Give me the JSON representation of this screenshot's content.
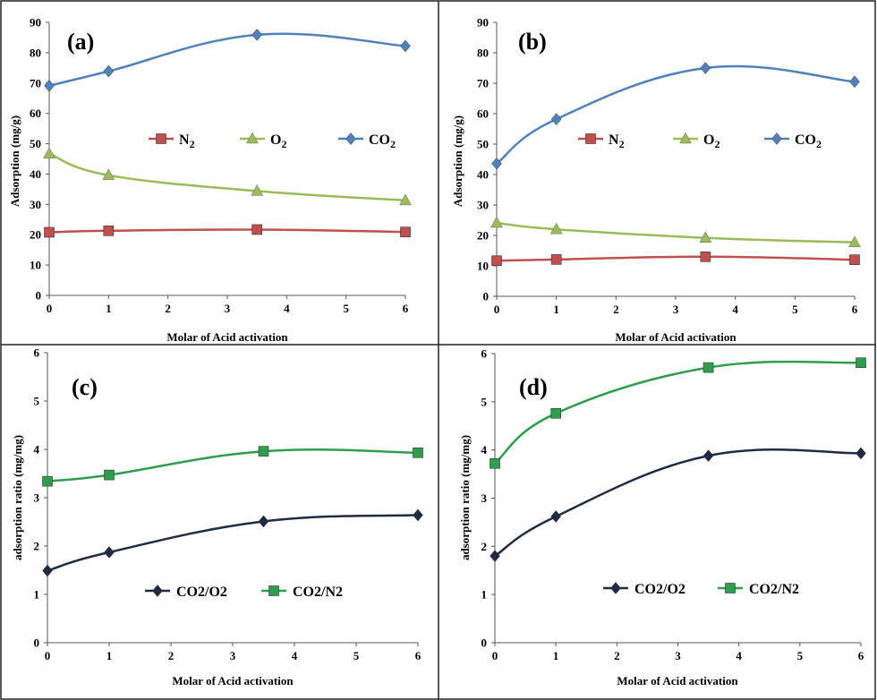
{
  "colors": {
    "n2": "#C0504D",
    "o2": "#9BBB59",
    "co2": "#4F81BD",
    "co2_o2": "#1F2A44",
    "co2_n2": "#2E9E4E"
  },
  "chart_data": [
    {
      "type": "line",
      "panel_label": "(a)",
      "x": [
        0,
        1,
        3.5,
        6
      ],
      "xlim": [
        0,
        6
      ],
      "ylim": [
        0,
        90
      ],
      "x_ticks": [
        "0",
        "1",
        "2",
        "3",
        "4",
        "5",
        "6"
      ],
      "y_ticks": [
        "0",
        "10",
        "20",
        "30",
        "40",
        "50",
        "60",
        "70",
        "80",
        "90"
      ],
      "xlabel": "Molar of Acid activation",
      "ylabel": "Adsorption (mg/g)",
      "legend_position": "middle",
      "series": [
        {
          "name": "N2",
          "label_main": "N",
          "label_sub": "2",
          "color_key": "n2",
          "marker": "square",
          "values": [
            20.8,
            21.3,
            21.7,
            20.9
          ]
        },
        {
          "name": "O2",
          "label_main": "O",
          "label_sub": "2",
          "color_key": "o2",
          "marker": "triangle",
          "values": [
            46.7,
            39.6,
            34.4,
            31.3
          ]
        },
        {
          "name": "CO2",
          "label_main": "CO",
          "label_sub": "2",
          "color_key": "co2",
          "marker": "diamond",
          "values": [
            69.1,
            73.9,
            85.9,
            82.2
          ]
        }
      ]
    },
    {
      "type": "line",
      "panel_label": "(b)",
      "x": [
        0,
        1,
        3.5,
        6
      ],
      "xlim": [
        0,
        6
      ],
      "ylim": [
        0,
        90
      ],
      "x_ticks": [
        "0",
        "1",
        "2",
        "3",
        "4",
        "5",
        "6"
      ],
      "y_ticks": [
        "0",
        "10",
        "20",
        "30",
        "40",
        "50",
        "60",
        "70",
        "80",
        "90"
      ],
      "xlabel": "Molar of Acid activation",
      "ylabel": "Adsorption (mg/g)",
      "legend_position": "middle",
      "series": [
        {
          "name": "N2",
          "label_main": "N",
          "label_sub": "2",
          "color_key": "n2",
          "marker": "square",
          "values": [
            11.7,
            12.1,
            13.0,
            12.0
          ]
        },
        {
          "name": "O2",
          "label_main": "O",
          "label_sub": "2",
          "color_key": "o2",
          "marker": "triangle",
          "values": [
            24.1,
            22.0,
            19.2,
            17.7
          ]
        },
        {
          "name": "CO2",
          "label_main": "CO",
          "label_sub": "2",
          "color_key": "co2",
          "marker": "diamond",
          "values": [
            43.6,
            58.2,
            75.0,
            70.5
          ]
        }
      ]
    },
    {
      "type": "line",
      "panel_label": "(c)",
      "x": [
        0,
        1,
        3.5,
        6
      ],
      "xlim": [
        0,
        6
      ],
      "ylim": [
        0,
        6
      ],
      "x_ticks": [
        "0",
        "1",
        "2",
        "3",
        "4",
        "5",
        "6"
      ],
      "y_ticks": [
        "0",
        "1",
        "2",
        "3",
        "4",
        "5",
        "6"
      ],
      "xlabel": "Molar of Acid activation",
      "ylabel": "adsorption ratio (mg/mg)",
      "legend_position": "bottom-middle",
      "series": [
        {
          "name": "CO2/O2",
          "label_main": "CO2/O2",
          "label_sub": "",
          "color_key": "co2_o2",
          "marker": "diamond",
          "values": [
            1.49,
            1.87,
            2.51,
            2.64
          ]
        },
        {
          "name": "CO2/N2",
          "label_main": "CO2/N2",
          "label_sub": "",
          "color_key": "co2_n2",
          "marker": "square",
          "values": [
            3.34,
            3.47,
            3.96,
            3.93
          ]
        }
      ]
    },
    {
      "type": "line",
      "panel_label": "(d)",
      "x": [
        0,
        1,
        3.5,
        6
      ],
      "xlim": [
        0,
        6
      ],
      "ylim": [
        0,
        6
      ],
      "x_ticks": [
        "0",
        "1",
        "2",
        "3",
        "4",
        "5",
        "6"
      ],
      "y_ticks": [
        "0",
        "1",
        "2",
        "3",
        "4",
        "5",
        "6"
      ],
      "xlabel": "Molar of Acid activation",
      "ylabel": "adsorption ratio (mg/mg)",
      "legend_position": "bottom-middle",
      "series": [
        {
          "name": "CO2/O2",
          "label_main": "CO2/O2",
          "label_sub": "",
          "color_key": "co2_o2",
          "marker": "diamond",
          "values": [
            1.8,
            2.62,
            3.88,
            3.93
          ]
        },
        {
          "name": "CO2/N2",
          "label_main": "CO2/N2",
          "label_sub": "",
          "color_key": "co2_n2",
          "marker": "square",
          "values": [
            3.72,
            4.76,
            5.71,
            5.81
          ]
        }
      ]
    }
  ]
}
